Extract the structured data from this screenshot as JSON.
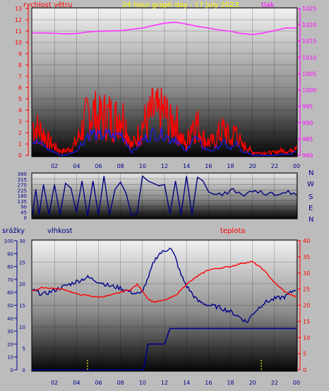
{
  "header": {
    "left_label": "rychlost větru",
    "title": "24 hour graph day : 17 July 2023",
    "right_label": "tlak"
  },
  "compass": [
    "N",
    "W",
    "S",
    "E",
    "N"
  ],
  "panel3_labels": {
    "precip": "srážky",
    "humidity": "vlhkost",
    "temperature": "teplota"
  },
  "colors": {
    "wind_gust": "#ff0000",
    "wind_avg": "#1a1aff",
    "pressure": "#ff33ff",
    "direction": "#000080",
    "humidity": "#00008b",
    "temperature": "#ff0000",
    "rain": "#00008b",
    "rain_marker": "#ffff00",
    "left_axis_text": "#ff0000",
    "right_axis_text": "#ff00ff",
    "blue_axis_text": "#00008b"
  },
  "chart_data": [
    {
      "type": "line",
      "name": "wind-pressure",
      "x_ticks": [
        "02",
        "04",
        "06",
        "08",
        "10",
        "12",
        "14",
        "16",
        "18",
        "20",
        "22",
        "00"
      ],
      "y_left_ticks": [
        "0",
        "1",
        "2",
        "3",
        "4",
        "5",
        "6",
        "7",
        "8",
        "9",
        "10",
        "11",
        "12",
        "13"
      ],
      "y_left_lim": [
        0,
        13
      ],
      "y_right_ticks": [
        "980",
        "985",
        "990",
        "995",
        "1000",
        "1005",
        "1010",
        "1015",
        "1020",
        "1025"
      ],
      "y_right_lim": [
        980,
        1025
      ],
      "series": [
        {
          "role": "wind_gust",
          "x": [
            0,
            0.5,
            1,
            1.5,
            2,
            2.5,
            3,
            3.5,
            4,
            4.5,
            5,
            5.5,
            6,
            6.5,
            7,
            7.5,
            8,
            8.5,
            9,
            9.5,
            10,
            10.5,
            11,
            11.5,
            12,
            12.5,
            13,
            13.5,
            14,
            14.5,
            15,
            15.5,
            16,
            16.5,
            17,
            17.5,
            18,
            18.5,
            19,
            19.5,
            20,
            20.5,
            21,
            21.5,
            22,
            22.5,
            23,
            23.5,
            24
          ],
          "y": [
            3.5,
            3,
            2.5,
            1.5,
            1,
            0.5,
            0.5,
            0.8,
            1.5,
            3,
            4.5,
            5,
            4,
            4.5,
            4.5,
            4,
            5,
            3.5,
            1,
            2,
            3.5,
            4,
            5,
            4.5,
            5,
            3.5,
            4,
            2,
            1,
            4,
            3.5,
            2,
            1.5,
            1.5,
            2.5,
            3,
            1.5,
            3,
            1,
            1,
            0.3,
            0.3,
            0.3,
            0.3,
            0.3,
            0.5,
            0.5,
            0.5,
            1.5
          ]
        },
        {
          "role": "wind_avg",
          "x": [
            0,
            0.5,
            1,
            1.5,
            2,
            2.5,
            3,
            3.5,
            4,
            4.5,
            5,
            5.5,
            6,
            6.5,
            7,
            7.5,
            8,
            8.5,
            9,
            9.5,
            10,
            10.5,
            11,
            11.5,
            12,
            12.5,
            13,
            13.5,
            14,
            14.5,
            15,
            15.5,
            16,
            16.5,
            17,
            17.5,
            18,
            18.5,
            19,
            19.5,
            20,
            20.5,
            21,
            21.5,
            22,
            22.5,
            23,
            23.5,
            24
          ],
          "y": [
            1.5,
            1.2,
            1,
            0.5,
            0.3,
            0,
            0,
            0.2,
            0.5,
            1.2,
            2,
            2.2,
            1.8,
            2,
            2,
            1.8,
            2.2,
            1.5,
            0.3,
            0.8,
            1.5,
            1.8,
            2.2,
            2,
            2.2,
            1.5,
            1.8,
            0.8,
            0.3,
            1.8,
            1.5,
            0.8,
            0.5,
            0.5,
            1,
            1.2,
            0.5,
            1.2,
            0.3,
            0.3,
            0,
            0,
            0,
            0,
            0,
            0.1,
            0.1,
            0.1,
            0.5
          ]
        },
        {
          "role": "pressure",
          "x": [
            0,
            1,
            2,
            3,
            4,
            5,
            6,
            7,
            8,
            9,
            10,
            11,
            12,
            13,
            14,
            15,
            16,
            17,
            18,
            19,
            20,
            21,
            22,
            23,
            24
          ],
          "y": [
            1017.5,
            1017.5,
            1017.4,
            1017.2,
            1017.3,
            1017.8,
            1018,
            1018.1,
            1018.2,
            1018.6,
            1019,
            1019.8,
            1020.5,
            1020.8,
            1020.2,
            1019.5,
            1019,
            1018.4,
            1018,
            1017.3,
            1017,
            1017.5,
            1018.2,
            1019,
            1019
          ]
        }
      ]
    },
    {
      "type": "line",
      "name": "wind-direction",
      "x_ticks": [
        "02",
        "04",
        "06",
        "08",
        "10",
        "12",
        "14",
        "16",
        "18",
        "20",
        "22",
        "00"
      ],
      "y_ticks": [
        "0",
        "45",
        "90",
        "135",
        "180",
        "225",
        "270",
        "315",
        "360"
      ],
      "y_lim": [
        0,
        360
      ],
      "series": [
        {
          "role": "direction",
          "x": [
            0,
            0.3,
            0.6,
            1,
            1.5,
            2,
            2.5,
            3,
            3.5,
            4,
            4.5,
            5,
            5.5,
            6,
            6.5,
            7,
            7.5,
            8,
            8.5,
            9,
            9.5,
            10,
            10.5,
            11,
            11.5,
            12,
            12.5,
            13,
            13.5,
            14,
            14.5,
            15,
            15.5,
            16,
            16.5,
            17,
            17.5,
            18,
            18.5,
            19,
            19.5,
            20,
            20.5,
            21,
            21.5,
            22,
            22.5,
            23,
            23.5,
            24
          ],
          "y": [
            20,
            230,
            20,
            270,
            20,
            270,
            20,
            280,
            240,
            40,
            300,
            10,
            300,
            20,
            340,
            20,
            230,
            290,
            200,
            20,
            30,
            340,
            300,
            280,
            260,
            270,
            30,
            300,
            20,
            340,
            20,
            330,
            300,
            210,
            190,
            200,
            210,
            230,
            200,
            190,
            200,
            210,
            200,
            190,
            200,
            180,
            190,
            200,
            190,
            185
          ]
        }
      ]
    },
    {
      "type": "line",
      "name": "humidity-temperature-precipitation",
      "x_ticks": [
        "02",
        "04",
        "06",
        "08",
        "10",
        "12",
        "14",
        "16",
        "18",
        "20",
        "22",
        "00"
      ],
      "precip_ticks": [
        "0",
        "10",
        "20",
        "30",
        "40",
        "50",
        "60",
        "70",
        "80",
        "90",
        "100"
      ],
      "precip_lim": [
        0,
        100
      ],
      "humidity_ticks": [
        "0",
        "5",
        "10",
        "15",
        "20",
        "25",
        "30"
      ],
      "humidity_lim": [
        0,
        30
      ],
      "temperature_ticks": [
        "0",
        "5",
        "10",
        "15",
        "20",
        "25",
        "30",
        "35",
        "40"
      ],
      "temperature_lim": [
        0,
        40
      ],
      "series": [
        {
          "role": "humidity",
          "x": [
            0,
            1,
            2,
            3,
            4,
            5,
            6,
            7,
            8,
            9,
            9.8,
            10.5,
            11,
            11.5,
            12,
            12.5,
            13,
            13.5,
            14,
            15,
            16,
            17,
            18,
            19,
            19.5,
            20,
            21,
            22,
            23,
            24
          ],
          "y": [
            18.5,
            17.5,
            18.5,
            19.5,
            20.5,
            21.5,
            20.5,
            19.5,
            19,
            18,
            17.5,
            21,
            25,
            27,
            27.5,
            28.5,
            26,
            22,
            19.5,
            16,
            15,
            14.5,
            13.5,
            12,
            11,
            13,
            15.5,
            16.5,
            17,
            19
          ]
        },
        {
          "role": "temperature",
          "x": [
            0,
            1,
            2,
            3,
            4,
            5,
            6,
            7,
            8,
            9,
            9.5,
            10,
            10.5,
            11,
            12,
            13,
            14,
            15,
            16,
            17,
            18,
            19,
            20,
            21,
            22,
            23,
            24
          ],
          "y": [
            24.5,
            25.5,
            25.2,
            24.8,
            23.5,
            23,
            22.5,
            23,
            24,
            25,
            26.5,
            24.5,
            22,
            21,
            21.5,
            23,
            26.5,
            29,
            31,
            31.5,
            32,
            33,
            33.5,
            31,
            27,
            24,
            22.5
          ]
        },
        {
          "role": "rain",
          "x": [
            0,
            10.1,
            10.5,
            11,
            11.5,
            12,
            12.5,
            13,
            14,
            16,
            18,
            20,
            22,
            24
          ],
          "y": [
            0,
            0,
            20,
            20,
            20,
            20,
            32,
            32,
            32,
            32,
            32,
            32,
            32,
            32
          ]
        }
      ],
      "rain_markers_x": [
        5,
        20.8
      ]
    }
  ]
}
